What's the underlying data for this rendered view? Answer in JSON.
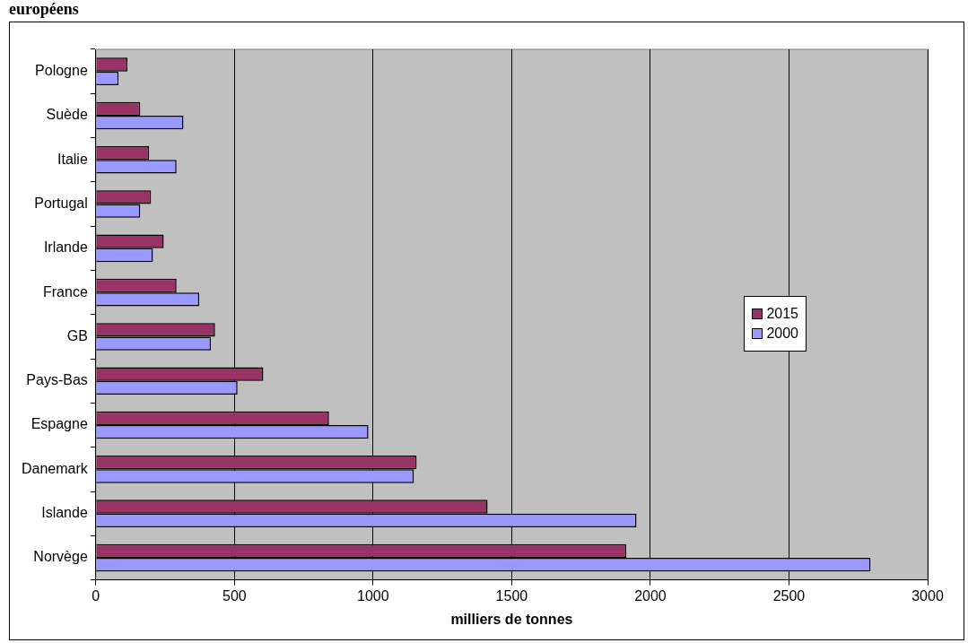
{
  "chart_data": {
    "type": "bar",
    "orientation": "horizontal",
    "title": "européens",
    "xlabel": "milliers de tonnes",
    "categories": [
      "Pologne",
      "Suède",
      "Italie",
      "Portugal",
      "Irlande",
      "France",
      "GB",
      "Pays-Bas",
      "Espagne",
      "Danemark",
      "Islande",
      "Norvège"
    ],
    "series": [
      {
        "name": "2015",
        "color": "#993366",
        "values": [
          114,
          160,
          192,
          199,
          245,
          291,
          430,
          604,
          841,
          1157,
          1413,
          1913
        ]
      },
      {
        "name": "2000",
        "color": "#9999ff",
        "values": [
          82,
          316,
          291,
          160,
          206,
          373,
          415,
          511,
          983,
          1147,
          1950,
          2794
        ]
      }
    ],
    "xlim": [
      0,
      3000
    ],
    "xticks": [
      0,
      500,
      1000,
      1500,
      2000,
      2500,
      3000
    ],
    "grid": "x",
    "legend": "right"
  }
}
